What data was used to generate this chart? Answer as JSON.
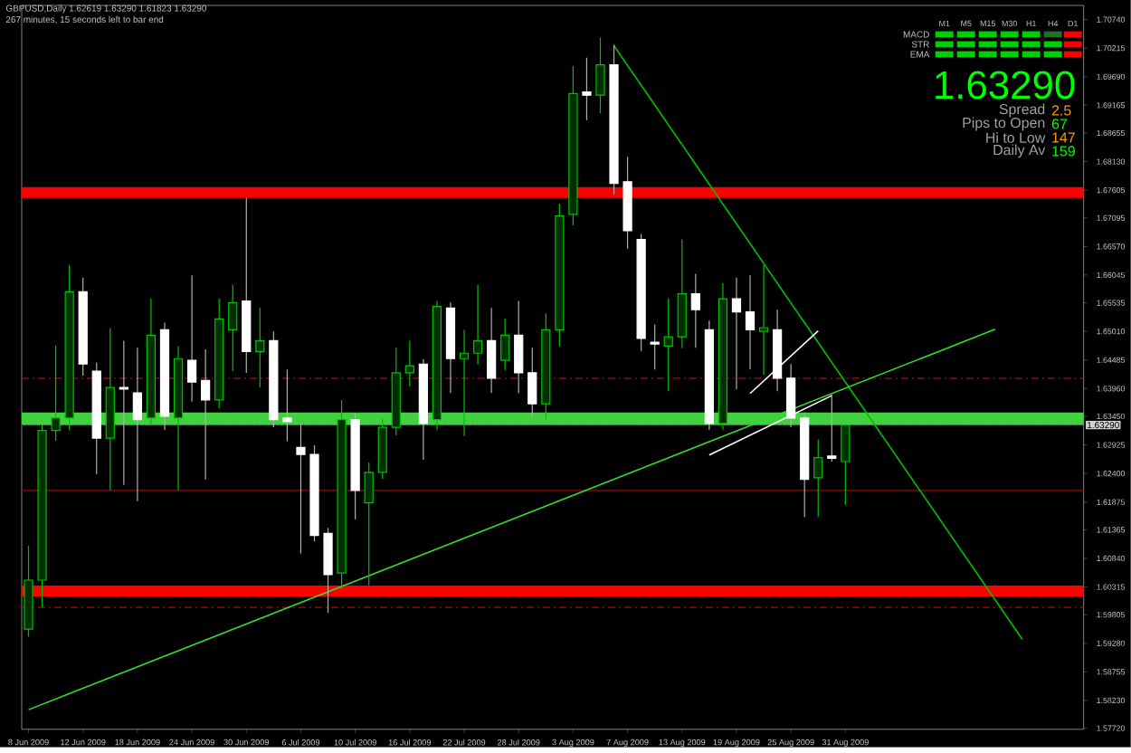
{
  "chart_data": {
    "type": "candlestick",
    "categories": [
      "8 Jun 2009",
      null,
      null,
      null,
      "12 Jun 2009",
      null,
      null,
      null,
      "18 Jun 2009",
      null,
      null,
      null,
      "24 Jun 2009",
      null,
      null,
      null,
      "30 Jun 2009",
      null,
      null,
      null,
      "6 Jul 2009",
      null,
      null,
      null,
      "10 Jul 2009",
      null,
      null,
      null,
      "16 Jul 2009",
      null,
      null,
      null,
      "22 Jul 2009",
      null,
      null,
      null,
      "28 Jul 2009",
      null,
      null,
      null,
      "3 Aug 2009",
      null,
      null,
      null,
      "7 Aug 2009",
      null,
      null,
      null,
      "13 Aug 2009",
      null,
      null,
      null,
      "19 Aug 2009",
      null,
      null,
      null,
      "25 Aug 2009",
      null,
      null,
      null,
      "31 Aug 2009",
      null,
      null,
      null,
      null,
      null,
      null,
      null,
      null,
      null,
      null,
      null,
      null,
      null,
      null,
      null,
      null,
      null
    ],
    "ohlc": [
      [
        1.5954,
        1.6107,
        1.594,
        1.6044
      ],
      [
        1.6044,
        1.633,
        1.5994,
        1.6319
      ],
      [
        1.6319,
        1.6475,
        1.63,
        1.6342
      ],
      [
        1.6342,
        1.6623,
        1.632,
        1.6574
      ],
      [
        1.6574,
        1.66,
        1.642,
        1.6441
      ],
      [
        1.6428,
        1.6444,
        1.6239,
        1.6305
      ],
      [
        1.6305,
        1.6507,
        1.6209,
        1.6398
      ],
      [
        1.6398,
        1.6484,
        1.6219,
        1.6395
      ],
      [
        1.6388,
        1.6471,
        1.6189,
        1.6339
      ],
      [
        1.6342,
        1.6561,
        1.633,
        1.6494
      ],
      [
        1.6504,
        1.6517,
        1.632,
        1.6345
      ],
      [
        1.6342,
        1.6474,
        1.6209,
        1.6451
      ],
      [
        1.6448,
        1.6604,
        1.6372,
        1.6408
      ],
      [
        1.6411,
        1.6468,
        1.6229,
        1.6375
      ],
      [
        1.6375,
        1.6561,
        1.636,
        1.6524
      ],
      [
        1.6504,
        1.6587,
        1.6428,
        1.6554
      ],
      [
        1.6557,
        1.6746,
        1.6425,
        1.6464
      ],
      [
        1.6464,
        1.6544,
        1.6398,
        1.6484
      ],
      [
        1.6484,
        1.6501,
        1.6325,
        1.6339
      ],
      [
        1.6342,
        1.6431,
        1.6299,
        1.6335
      ],
      [
        1.6288,
        1.6332,
        1.6093,
        1.6275
      ],
      [
        1.6275,
        1.6292,
        1.6115,
        1.6126
      ],
      [
        1.613,
        1.614,
        1.5984,
        1.6054
      ],
      [
        1.6057,
        1.6375,
        1.6027,
        1.6339
      ],
      [
        1.6339,
        1.635,
        1.6156,
        1.6209
      ],
      [
        1.6186,
        1.626,
        1.6034,
        1.6242
      ],
      [
        1.6242,
        1.634,
        1.623,
        1.6325
      ],
      [
        1.6325,
        1.6471,
        1.631,
        1.6425
      ],
      [
        1.6425,
        1.6484,
        1.64,
        1.6438
      ],
      [
        1.6441,
        1.645,
        1.6265,
        1.6332
      ],
      [
        1.6339,
        1.6557,
        1.632,
        1.6547
      ],
      [
        1.6544,
        1.6554,
        1.6388,
        1.6451
      ],
      [
        1.6451,
        1.6504,
        1.6309,
        1.6461
      ],
      [
        1.6461,
        1.6587,
        1.644,
        1.6484
      ],
      [
        1.6484,
        1.6544,
        1.6388,
        1.6415
      ],
      [
        1.6448,
        1.6524,
        1.643,
        1.6494
      ],
      [
        1.6494,
        1.6557,
        1.6388,
        1.6425
      ],
      [
        1.6425,
        1.6471,
        1.6345,
        1.6368
      ],
      [
        1.6368,
        1.6534,
        1.634,
        1.6504
      ],
      [
        1.6504,
        1.6736,
        1.6474,
        1.6713
      ],
      [
        1.6716,
        1.6988,
        1.6696,
        1.6938
      ],
      [
        1.6941,
        1.7004,
        1.6889,
        1.6935
      ],
      [
        1.6935,
        1.7041,
        1.6902,
        1.6991
      ],
      [
        1.6991,
        1.7028,
        1.6753,
        1.6773
      ],
      [
        1.6776,
        1.6822,
        1.6653,
        1.6686
      ],
      [
        1.667,
        1.668,
        1.6465,
        1.6488
      ],
      [
        1.6481,
        1.6514,
        1.6431,
        1.6478
      ],
      [
        1.6474,
        1.6561,
        1.6391,
        1.6491
      ],
      [
        1.6491,
        1.667,
        1.647,
        1.657
      ],
      [
        1.657,
        1.6607,
        1.6471,
        1.6541
      ],
      [
        1.6504,
        1.6521,
        1.632,
        1.6332
      ],
      [
        1.6332,
        1.659,
        1.632,
        1.6561
      ],
      [
        1.6561,
        1.66,
        1.6395,
        1.6537
      ],
      [
        1.6537,
        1.6604,
        1.6431,
        1.6504
      ],
      [
        1.6501,
        1.6623,
        1.6421,
        1.6508
      ],
      [
        1.6504,
        1.6541,
        1.6391,
        1.6415
      ],
      [
        1.6415,
        1.6441,
        1.6325,
        1.6342
      ],
      [
        1.6342,
        1.6352,
        1.616,
        1.6229
      ],
      [
        1.6232,
        1.6302,
        1.616,
        1.6269
      ],
      [
        1.6272,
        1.6385,
        1.6262,
        1.6268
      ],
      [
        1.62619,
        1.6329,
        1.61823,
        1.6329
      ],
      null,
      null,
      null,
      null,
      null,
      null,
      null,
      null,
      null,
      null,
      null,
      null,
      null,
      null,
      null,
      null,
      null
    ],
    "series": [
      {
        "type": "line",
        "color": "#00c000",
        "values": [
          null,
          null,
          null,
          null,
          null,
          null,
          null,
          null,
          null,
          null,
          null,
          null,
          null,
          null,
          null,
          null,
          null,
          null,
          null,
          null,
          null,
          null,
          null,
          null,
          null,
          null,
          null,
          null,
          null,
          null,
          null,
          null,
          null,
          null,
          null,
          null,
          null,
          null,
          null,
          null,
          null,
          null,
          null,
          1.7026,
          null,
          null,
          null,
          null,
          null,
          null,
          null,
          null,
          null,
          null,
          null,
          null,
          null,
          null,
          null,
          null,
          null,
          null,
          null,
          null,
          null,
          null,
          null,
          null,
          null,
          null,
          null,
          null,
          null,
          1.5935,
          null,
          null,
          null,
          null
        ]
      },
      {
        "type": "line",
        "color": "#33dd33",
        "values": [
          1.5806,
          null,
          null,
          null,
          null,
          null,
          null,
          null,
          null,
          null,
          null,
          null,
          null,
          null,
          null,
          null,
          null,
          null,
          null,
          null,
          null,
          null,
          null,
          null,
          null,
          null,
          null,
          null,
          null,
          null,
          null,
          null,
          null,
          null,
          null,
          null,
          null,
          null,
          null,
          null,
          null,
          null,
          null,
          null,
          null,
          null,
          null,
          null,
          null,
          null,
          null,
          null,
          null,
          null,
          null,
          null,
          null,
          null,
          null,
          null,
          null,
          null,
          null,
          null,
          null,
          null,
          null,
          null,
          null,
          null,
          null,
          1.6505,
          null,
          null,
          null,
          null,
          null,
          null
        ]
      },
      {
        "type": "line",
        "color": "#ffffff",
        "values": [
          null,
          null,
          null,
          null,
          null,
          null,
          null,
          null,
          null,
          null,
          null,
          null,
          null,
          null,
          null,
          null,
          null,
          null,
          null,
          null,
          null,
          null,
          null,
          null,
          null,
          null,
          null,
          null,
          null,
          null,
          null,
          null,
          null,
          null,
          null,
          null,
          null,
          null,
          null,
          null,
          null,
          null,
          null,
          null,
          null,
          null,
          null,
          null,
          null,
          null,
          1.6274,
          null,
          null,
          null,
          null,
          null,
          null,
          null,
          null,
          1.6383,
          null,
          null,
          null,
          null,
          null,
          null,
          null,
          null,
          null,
          null,
          null,
          null,
          null,
          null,
          null,
          null,
          null,
          null
        ]
      },
      {
        "type": "line",
        "color": "#ffffff",
        "values": [
          null,
          null,
          null,
          null,
          null,
          null,
          null,
          null,
          null,
          null,
          null,
          null,
          null,
          null,
          null,
          null,
          null,
          null,
          null,
          null,
          null,
          null,
          null,
          null,
          null,
          null,
          null,
          null,
          null,
          null,
          null,
          null,
          null,
          null,
          null,
          null,
          null,
          null,
          null,
          null,
          null,
          null,
          null,
          null,
          null,
          null,
          null,
          null,
          null,
          null,
          null,
          null,
          null,
          1.6387,
          null,
          null,
          null,
          null,
          1.6502,
          null,
          null,
          null,
          null,
          null,
          null,
          null,
          null,
          null,
          null,
          null,
          null,
          null,
          null,
          null,
          null,
          null,
          null,
          null
        ]
      }
    ],
    "bands": [
      {
        "axis": "y",
        "from": 1.6746,
        "to": 1.6766,
        "color": "#ff0000"
      },
      {
        "axis": "y",
        "from": 1.6014,
        "to": 1.6034,
        "color": "#ff0000"
      },
      {
        "axis": "y",
        "from": 1.6329,
        "to": 1.6352,
        "color": "#40d040"
      }
    ],
    "ref_lines": [
      {
        "axis": "y",
        "value": 1.6415,
        "color": "#c00000",
        "line_style": "dashed"
      },
      {
        "axis": "y",
        "value": 1.5994,
        "color": "#c00000",
        "line_style": "dashed"
      },
      {
        "axis": "y",
        "value": 1.6209,
        "color": "#b00000",
        "line_style": "solid"
      },
      {
        "axis": "y",
        "value": 1.6329,
        "color": "#206020",
        "line_style": "dotted",
        "label": "1.63290"
      }
    ],
    "annotations": [
      "GBPUSD,Daily  1.62619 1.63290 1.61823 1.63290",
      "267 minutes, 15 seconds left to bar end",
      "M1",
      "M5",
      "M15",
      "M30",
      "H1",
      "H4",
      "D1",
      "MACD",
      "STR",
      "EMA",
      "1.63290",
      "Spread",
      "2.5",
      "Pips to Open",
      "67",
      "Hi to Low",
      "147",
      "Daily Av",
      "159"
    ],
    "ylim": [
      1.577,
      1.71
    ],
    "yticks": [
      {
        "value": 1.7074,
        "label": "1.70740"
      },
      {
        "value": 1.70215,
        "label": "1.70215"
      },
      {
        "value": 1.6969,
        "label": "1.69690"
      },
      {
        "value": 1.69165,
        "label": "1.69165"
      },
      {
        "value": 1.68655,
        "label": "1.68655"
      },
      {
        "value": 1.6813,
        "label": "1.68130"
      },
      {
        "value": 1.67605,
        "label": "1.67605"
      },
      {
        "value": 1.67095,
        "label": "1.67095"
      },
      {
        "value": 1.6657,
        "label": "1.66570"
      },
      {
        "value": 1.66045,
        "label": "1.66045"
      },
      {
        "value": 1.65535,
        "label": "1.65535"
      },
      {
        "value": 1.6501,
        "label": "1.65010"
      },
      {
        "value": 1.64485,
        "label": "1.64485"
      },
      {
        "value": 1.6396,
        "label": "1.63960"
      },
      {
        "value": 1.6345,
        "label": "1.63450"
      },
      {
        "value": 1.62925,
        "label": "1.62925"
      },
      {
        "value": 1.624,
        "label": "1.62400"
      },
      {
        "value": 1.61875,
        "label": "1.61875"
      },
      {
        "value": 1.61365,
        "label": "1.61365"
      },
      {
        "value": 1.6084,
        "label": "1.60840"
      },
      {
        "value": 1.60315,
        "label": "1.60315"
      },
      {
        "value": 1.59805,
        "label": "1.59805"
      },
      {
        "value": 1.5928,
        "label": "1.59280"
      },
      {
        "value": 1.58755,
        "label": "1.58755"
      },
      {
        "value": 1.5823,
        "label": "1.58230"
      },
      {
        "value": 1.5772,
        "label": "1.57720"
      }
    ]
  }
}
